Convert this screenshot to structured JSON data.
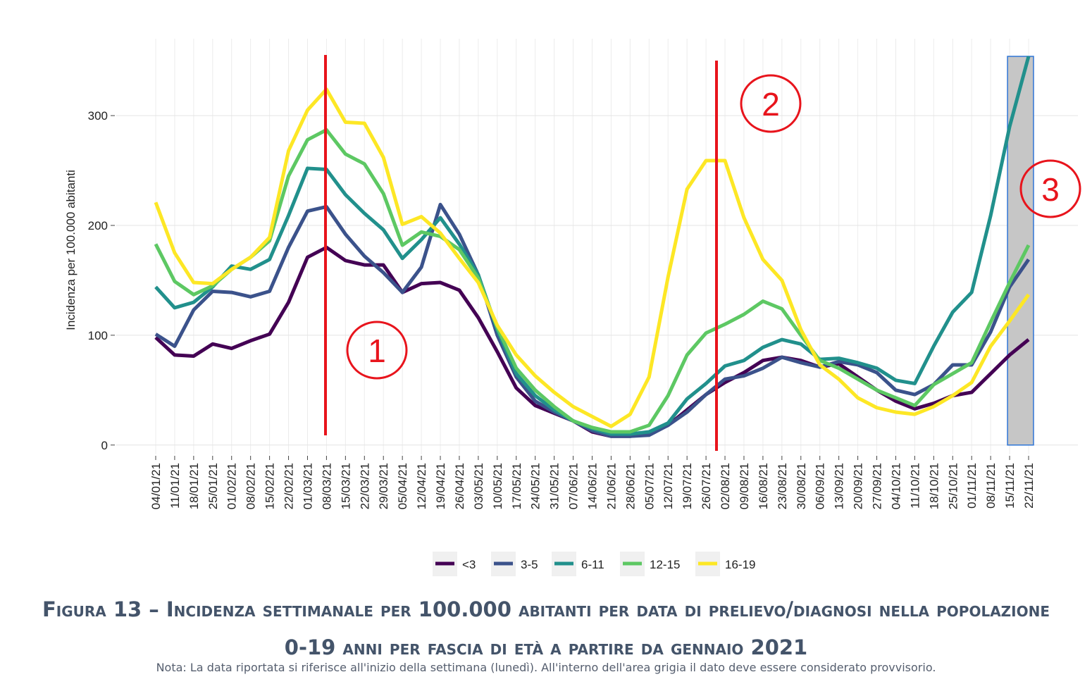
{
  "chart_data": {
    "type": "line",
    "title": "Figura 13 – Incidenza settimanale per 100.000 abitanti per data di prelievo/diagnosi nella popolazione 0-19 anni per fascia di età a partire da gennaio 2021",
    "note": "Nota: La data riportata si riferisce all'inizio della settimana (lunedì). All'interno dell'area grigia il dato deve essere considerato provvisorio.",
    "y_label": "Incidenza per 100.000 abitanti",
    "annotations": [
      "1",
      "2",
      "3"
    ],
    "categories": [
      "04/01/21",
      "11/01/21",
      "18/01/21",
      "25/01/21",
      "01/02/21",
      "08/02/21",
      "15/02/21",
      "22/02/21",
      "01/03/21",
      "08/03/21",
      "15/03/21",
      "22/03/21",
      "29/03/21",
      "05/04/21",
      "12/04/21",
      "19/04/21",
      "26/04/21",
      "03/05/21",
      "10/05/21",
      "17/05/21",
      "24/05/21",
      "31/05/21",
      "07/06/21",
      "14/06/21",
      "21/06/21",
      "28/06/21",
      "05/07/21",
      "12/07/21",
      "19/07/21",
      "26/07/21",
      "02/08/21",
      "09/08/21",
      "16/08/21",
      "23/08/21",
      "30/08/21",
      "06/09/21",
      "13/09/21",
      "20/09/21",
      "27/09/21",
      "04/10/21",
      "11/10/21",
      "18/10/21",
      "25/10/21",
      "01/11/21",
      "08/11/21",
      "15/11/21",
      "22/11/21"
    ],
    "series": [
      {
        "name": "<3",
        "color": "#440154",
        "values": [
          98,
          82,
          81,
          92,
          88,
          95,
          101,
          130,
          171,
          180,
          168,
          164,
          164,
          139,
          147,
          148,
          141,
          116,
          85,
          52,
          36,
          29,
          22,
          12,
          8,
          8,
          10,
          18,
          32,
          46,
          57,
          66,
          77,
          80,
          77,
          71,
          74,
          62,
          50,
          40,
          33,
          38,
          45,
          48,
          65,
          82,
          96
        ]
      },
      {
        "name": "3-5",
        "color": "#3b528b",
        "values": [
          101,
          90,
          123,
          140,
          139,
          135,
          140,
          180,
          213,
          217,
          192,
          172,
          157,
          139,
          162,
          219,
          192,
          155,
          100,
          62,
          40,
          30,
          22,
          13,
          8,
          8,
          9,
          18,
          30,
          46,
          60,
          63,
          70,
          80,
          75,
          71,
          76,
          73,
          66,
          50,
          46,
          55,
          73,
          73,
          103,
          144,
          169
        ]
      },
      {
        "name": "6-11",
        "color": "#21908c",
        "values": [
          144,
          125,
          130,
          144,
          163,
          160,
          169,
          209,
          252,
          251,
          228,
          211,
          196,
          170,
          187,
          207,
          183,
          155,
          105,
          65,
          45,
          32,
          22,
          15,
          10,
          10,
          12,
          20,
          42,
          56,
          72,
          77,
          89,
          96,
          92,
          78,
          79,
          75,
          70,
          59,
          56,
          90,
          121,
          139,
          209,
          290,
          354
        ]
      },
      {
        "name": "12-15",
        "color": "#5dc863",
        "values": [
          183,
          149,
          137,
          145,
          160,
          171,
          186,
          245,
          278,
          287,
          265,
          256,
          229,
          182,
          194,
          190,
          178,
          152,
          107,
          70,
          50,
          35,
          22,
          16,
          12,
          12,
          18,
          45,
          82,
          102,
          110,
          119,
          131,
          124,
          100,
          77,
          70,
          60,
          50,
          43,
          36,
          55,
          65,
          75,
          112,
          148,
          182
        ]
      },
      {
        "name": "16-19",
        "color": "#fde725",
        "values": [
          221,
          175,
          148,
          147,
          160,
          171,
          189,
          268,
          305,
          324,
          294,
          293,
          262,
          201,
          208,
          193,
          170,
          148,
          109,
          82,
          63,
          48,
          35,
          26,
          17,
          28,
          62,
          153,
          233,
          259,
          259,
          207,
          169,
          150,
          105,
          73,
          60,
          43,
          34,
          30,
          28,
          35,
          45,
          57,
          90,
          113,
          137
        ]
      }
    ],
    "ylim": [
      -8.5,
      370
    ],
    "yticks": [
      0,
      100,
      200,
      300
    ],
    "grid": true
  }
}
